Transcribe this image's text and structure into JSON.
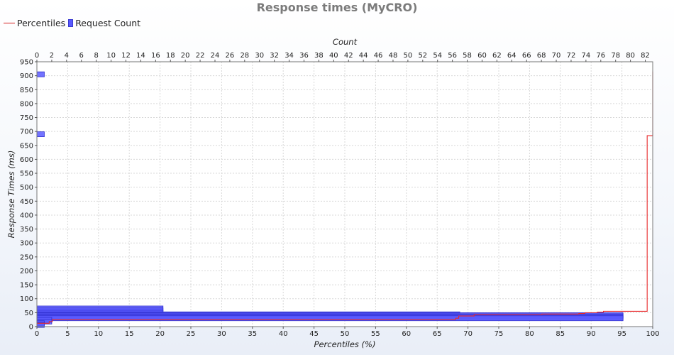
{
  "chart_data": {
    "type": "bar",
    "title": "Response times (MyCRO)",
    "legend": [
      "Percentiles",
      "Request Count"
    ],
    "legend_position": "top-left",
    "colors": {
      "percentiles": "#e8272a",
      "request_count": "#5a5aff",
      "request_count_edge": "#2f2fcf"
    },
    "grid": true,
    "xlabel_bottom": "Percentiles (%)",
    "xlabel_top": "Count",
    "ylabel": "Response Times (ms)",
    "xlim_bottom": [
      0,
      100
    ],
    "xlim_top": [
      0,
      83
    ],
    "ylim": [
      0,
      950
    ],
    "x_bottom_ticks": [
      0,
      5,
      10,
      15,
      20,
      25,
      30,
      35,
      40,
      45,
      50,
      55,
      60,
      65,
      70,
      75,
      80,
      85,
      90,
      95,
      100
    ],
    "x_top_ticks": [
      0,
      2,
      4,
      6,
      8,
      10,
      12,
      14,
      16,
      18,
      20,
      22,
      24,
      26,
      28,
      30,
      32,
      34,
      36,
      38,
      40,
      42,
      44,
      46,
      48,
      50,
      52,
      54,
      56,
      58,
      60,
      62,
      64,
      66,
      68,
      70,
      72,
      74,
      76,
      78,
      80,
      82
    ],
    "y_ticks": [
      0,
      50,
      100,
      150,
      200,
      250,
      300,
      350,
      400,
      450,
      500,
      550,
      600,
      650,
      700,
      750,
      800,
      850,
      900,
      950
    ],
    "request_count": [
      {
        "response_time": 905,
        "count": 1
      },
      {
        "response_time": 690,
        "count": 1
      },
      {
        "response_time": 65,
        "count": 17
      },
      {
        "response_time": 58,
        "count": 17
      },
      {
        "response_time": 50,
        "count": 17
      },
      {
        "response_time": 44,
        "count": 57
      },
      {
        "response_time": 41,
        "count": 79
      },
      {
        "response_time": 37,
        "count": 79
      },
      {
        "response_time": 34,
        "count": 79
      },
      {
        "response_time": 30,
        "count": 79
      },
      {
        "response_time": 24,
        "count": 2
      },
      {
        "response_time": 18,
        "count": 2
      },
      {
        "response_time": 12,
        "count": 1
      },
      {
        "response_time": 6,
        "count": 1
      }
    ],
    "percentiles": {
      "x": [
        0,
        2,
        2.5,
        68,
        68.5,
        71,
        82,
        88,
        89,
        91,
        92,
        99,
        99.1,
        99.9,
        100
      ],
      "y": [
        12,
        18,
        25,
        30,
        38,
        43,
        45,
        47,
        50,
        52,
        55,
        55,
        685,
        685,
        915
      ]
    }
  }
}
